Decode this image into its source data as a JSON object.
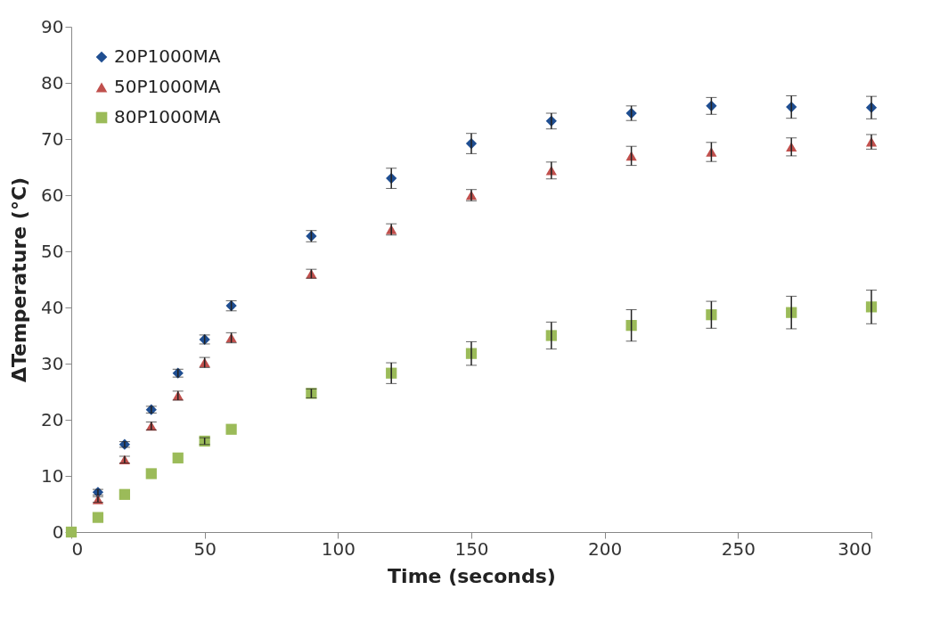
{
  "chart_data": {
    "type": "scatter",
    "xlabel": "Time (seconds)",
    "ylabel": "ΔTemperature (°C)",
    "x": [
      0,
      10,
      20,
      30,
      40,
      50,
      60,
      90,
      120,
      150,
      180,
      210,
      240,
      270,
      300
    ],
    "series": [
      {
        "name": "20P1000MA",
        "color": "#1f4e91",
        "marker": "diamond",
        "values": [
          null,
          7.1,
          15.6,
          21.8,
          28.3,
          34.3,
          40.3,
          52.7,
          63.0,
          69.2,
          73.2,
          74.6,
          75.9,
          75.7,
          75.6
        ],
        "errors": [
          null,
          0.5,
          0.5,
          0.6,
          0.7,
          0.8,
          0.9,
          1.0,
          1.8,
          1.8,
          1.4,
          1.3,
          1.5,
          2.0,
          2.0
        ]
      },
      {
        "name": "50P1000MA",
        "color": "#c0504d",
        "marker": "triangle",
        "values": [
          null,
          5.8,
          12.9,
          18.9,
          24.3,
          30.2,
          34.6,
          46.0,
          53.9,
          60.0,
          64.4,
          67.0,
          67.7,
          68.6,
          69.5
        ],
        "errors": [
          null,
          0.5,
          0.6,
          0.7,
          0.8,
          0.9,
          0.9,
          0.8,
          1.0,
          1.0,
          1.5,
          1.7,
          1.7,
          1.6,
          1.3
        ]
      },
      {
        "name": "80P1000MA",
        "color": "#9bbb59",
        "marker": "square",
        "values": [
          0,
          2.6,
          6.7,
          10.4,
          13.2,
          16.2,
          18.3,
          24.7,
          28.3,
          31.8,
          35.0,
          36.8,
          38.7,
          39.1,
          40.1
        ],
        "errors": [
          null,
          null,
          null,
          null,
          null,
          0.6,
          null,
          0.8,
          1.85,
          2.1,
          2.4,
          2.8,
          2.4,
          2.9,
          3.0
        ]
      }
    ],
    "xlim": [
      0,
      300
    ],
    "xticks": [
      0,
      50,
      100,
      150,
      200,
      250,
      300
    ],
    "ylim": [
      0,
      90
    ],
    "yticks": [
      0,
      10,
      20,
      30,
      40,
      50,
      60,
      70,
      80,
      90
    ],
    "grid": false,
    "legend": "top left"
  }
}
